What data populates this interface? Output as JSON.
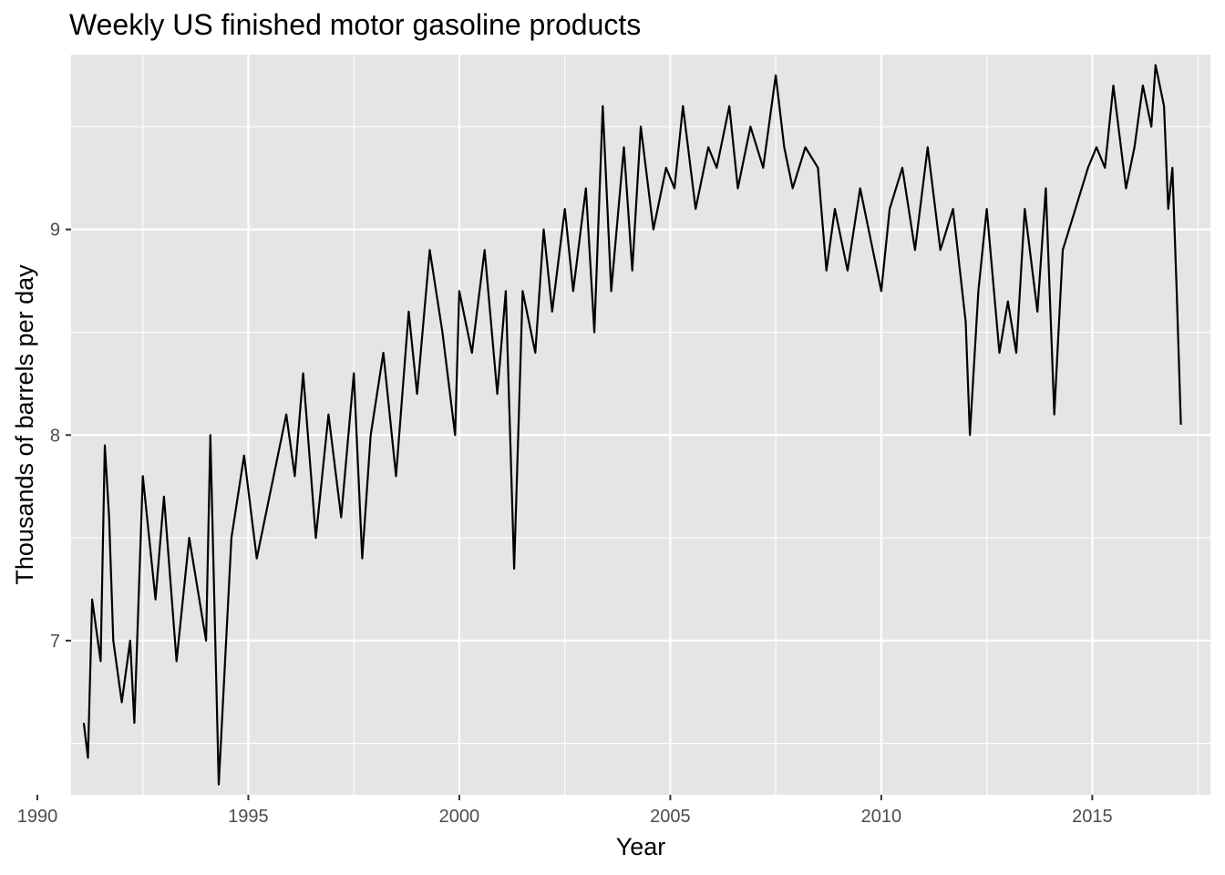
{
  "chart_data": {
    "type": "line",
    "title": "Weekly US finished motor gasoline products",
    "xlabel": "Year",
    "ylabel": "Thousands of barrels per day",
    "xlim": [
      1990.8,
      2017.8
    ],
    "ylim": [
      6.25,
      9.85
    ],
    "x_ticks": [
      1990,
      1995,
      2000,
      2005,
      2010,
      2015
    ],
    "x_tick_labels": [
      "1990",
      "1995",
      "2000",
      "2005",
      "2010",
      "2015"
    ],
    "y_ticks": [
      7,
      8,
      9
    ],
    "y_tick_labels": [
      "7",
      "8",
      "9"
    ],
    "grid": true,
    "legend": "none",
    "colors": {
      "panel": "#e5e5e5",
      "grid": "#ffffff",
      "line": "#000000",
      "tick_text": "#4d4d4d"
    },
    "series": [
      {
        "x": [
          1991.1,
          1991.2,
          1991.3,
          1991.5,
          1991.6,
          1991.7,
          1991.8,
          1992.0,
          1992.2,
          1992.3,
          1992.5,
          1992.8,
          1993.0,
          1993.3,
          1993.6,
          1994.0,
          1994.1,
          1994.3,
          1994.6,
          1994.9,
          1995.2,
          1995.5,
          1995.9,
          1996.1,
          1996.3,
          1996.6,
          1996.9,
          1997.2,
          1997.5,
          1997.7,
          1997.9,
          1998.2,
          1998.5,
          1998.8,
          1999.0,
          1999.3,
          1999.6,
          1999.9,
          2000.0,
          2000.3,
          2000.6,
          2000.9,
          2001.1,
          2001.3,
          2001.5,
          2001.8,
          2002.0,
          2002.2,
          2002.5,
          2002.7,
          2003.0,
          2003.2,
          2003.4,
          2003.6,
          2003.9,
          2004.1,
          2004.3,
          2004.6,
          2004.9,
          2005.1,
          2005.3,
          2005.6,
          2005.9,
          2006.1,
          2006.4,
          2006.6,
          2006.9,
          2007.2,
          2007.5,
          2007.7,
          2007.9,
          2008.2,
          2008.5,
          2008.7,
          2008.9,
          2009.2,
          2009.5,
          2009.8,
          2010.0,
          2010.2,
          2010.5,
          2010.8,
          2011.1,
          2011.4,
          2011.7,
          2012.0,
          2012.1,
          2012.3,
          2012.5,
          2012.8,
          2013.0,
          2013.2,
          2013.4,
          2013.7,
          2013.9,
          2014.1,
          2014.3,
          2014.6,
          2014.9,
          2015.1,
          2015.3,
          2015.5,
          2015.8,
          2016.0,
          2016.2,
          2016.4,
          2016.5,
          2016.7,
          2016.8,
          2016.9,
          2017.0,
          2017.1
        ],
        "values": [
          6.6,
          6.43,
          7.2,
          6.9,
          7.95,
          7.6,
          7.0,
          6.7,
          7.0,
          6.6,
          7.8,
          7.2,
          7.7,
          6.9,
          7.5,
          7.0,
          8.0,
          6.3,
          7.5,
          7.9,
          7.4,
          7.7,
          8.1,
          7.8,
          8.3,
          7.5,
          8.1,
          7.6,
          8.3,
          7.4,
          8.0,
          8.4,
          7.8,
          8.6,
          8.2,
          8.9,
          8.5,
          8.0,
          8.7,
          8.4,
          8.9,
          8.2,
          8.7,
          7.35,
          8.7,
          8.4,
          9.0,
          8.6,
          9.1,
          8.7,
          9.2,
          8.5,
          9.6,
          8.7,
          9.4,
          8.8,
          9.5,
          9.0,
          9.3,
          9.2,
          9.6,
          9.1,
          9.4,
          9.3,
          9.6,
          9.2,
          9.5,
          9.3,
          9.75,
          9.4,
          9.2,
          9.4,
          9.3,
          8.8,
          9.1,
          8.8,
          9.2,
          8.9,
          8.7,
          9.1,
          9.3,
          8.9,
          9.4,
          8.9,
          9.1,
          8.55,
          8.0,
          8.7,
          9.1,
          8.4,
          8.65,
          8.4,
          9.1,
          8.6,
          9.2,
          8.1,
          8.9,
          9.1,
          9.3,
          9.4,
          9.3,
          9.7,
          9.2,
          9.4,
          9.7,
          9.5,
          9.8,
          9.6,
          9.1,
          9.3,
          8.7,
          8.05
        ]
      }
    ]
  }
}
